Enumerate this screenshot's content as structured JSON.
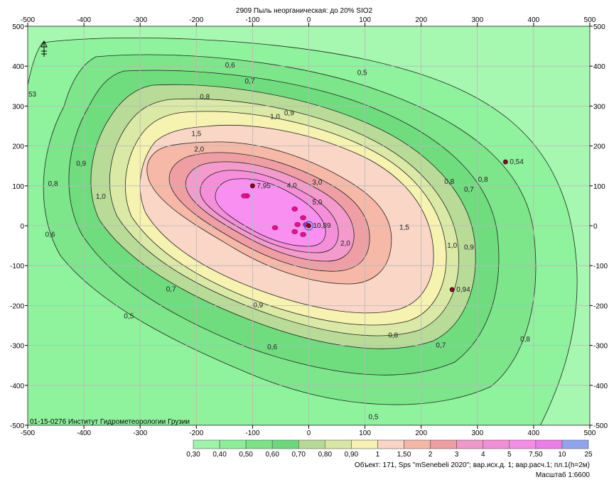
{
  "chart_data": {
    "type": "heatmap",
    "title": "2909 Пыль неорганическая: до 20% SIO2",
    "xlim": [
      -500,
      500
    ],
    "ylim": [
      -500,
      500
    ],
    "x_ticks": [
      "-500",
      "-400",
      "-300",
      "-200",
      "-100",
      "0",
      "100",
      "200",
      "300",
      "400",
      "500"
    ],
    "y_ticks": [
      "500",
      "400",
      "300",
      "200",
      "100",
      "0",
      "-100",
      "-200",
      "-300",
      "-400",
      "-500"
    ],
    "grid": true,
    "legend_placement": "bottom-right",
    "legend": {
      "levels": [
        "0,30",
        "0,40",
        "0,50",
        "0,60",
        "0,70",
        "0,80",
        "0,90",
        "1",
        "1,50",
        "2",
        "3",
        "4",
        "5",
        "7,50",
        "10",
        "25"
      ],
      "colors": [
        "#9cf5a8",
        "#8af096",
        "#7ae384",
        "#6ad97a",
        "#b6d996",
        "#d7e8a4",
        "#f5f2b0",
        "#fad5c4",
        "#f6b6a6",
        "#ef9ca2",
        "#f198c8",
        "#f48cd6",
        "#f68ce8",
        "#ee7ce8",
        "#8fa4f0"
      ]
    },
    "contour_labels": [
      {
        "text": "0,5",
        "x": 95,
        "y": 378
      },
      {
        "text": "0,6",
        "x": -140,
        "y": 397
      },
      {
        "text": "0,7",
        "x": -105,
        "y": 357
      },
      {
        "text": "0,8",
        "x": -185,
        "y": 318
      },
      {
        "text": "0,9",
        "x": -35,
        "y": 277
      },
      {
        "text": "1,0",
        "x": -60,
        "y": 268
      },
      {
        "text": "1,5",
        "x": -200,
        "y": 225
      },
      {
        "text": "2,0",
        "x": -195,
        "y": 186
      },
      {
        "text": "3,0",
        "x": 15,
        "y": 103
      },
      {
        "text": "4,0",
        "x": -30,
        "y": 95
      },
      {
        "text": "5,0",
        "x": 15,
        "y": 53
      },
      {
        "text": "0,9",
        "x": -405,
        "y": 150
      },
      {
        "text": "0,8",
        "x": -455,
        "y": 100
      },
      {
        "text": "1,0",
        "x": -370,
        "y": 68
      },
      {
        "text": "0,6",
        "x": -460,
        "y": -28
      },
      {
        "text": "0,7",
        "x": -245,
        "y": -165
      },
      {
        "text": "0,5",
        "x": -320,
        "y": -232
      },
      {
        "text": "0,9",
        "x": -90,
        "y": -205
      },
      {
        "text": "0,6",
        "x": -65,
        "y": -310
      },
      {
        "text": "0,8",
        "x": 150,
        "y": -280
      },
      {
        "text": "0,7",
        "x": 235,
        "y": -305
      },
      {
        "text": "0,8",
        "x": 385,
        "y": -290
      },
      {
        "text": "2,0",
        "x": 65,
        "y": -50
      },
      {
        "text": "1,5",
        "x": 170,
        "y": -10
      },
      {
        "text": "1,0",
        "x": 255,
        "y": -55
      },
      {
        "text": "0,9",
        "x": 285,
        "y": -60
      },
      {
        "text": "0,8",
        "x": 250,
        "y": 105
      },
      {
        "text": "0,7",
        "x": 285,
        "y": 85
      },
      {
        "text": "0,8",
        "x": 310,
        "y": 110
      },
      {
        "text": "0,5",
        "x": 115,
        "y": -485
      }
    ],
    "point_values": [
      {
        "text": "7,95",
        "x": -100,
        "y": 100
      },
      {
        "text": "10,89",
        "x": 0,
        "y": 0
      },
      {
        "text": "0,54",
        "x": 350,
        "y": 160
      },
      {
        "text": "0,94",
        "x": 255,
        "y": -160
      }
    ],
    "sources": [
      {
        "x": -110,
        "y": 75
      },
      {
        "x": -115,
        "y": 75
      },
      {
        "x": -25,
        "y": 42
      },
      {
        "x": -10,
        "y": 20
      },
      {
        "x": -20,
        "y": 3
      },
      {
        "x": -5,
        "y": 3
      },
      {
        "x": -25,
        "y": -15
      },
      {
        "x": -10,
        "y": -22
      },
      {
        "x": -60,
        "y": -5
      }
    ],
    "side_marker": "53"
  },
  "footer": {
    "institute": "01-15-0276 Институт Гидрометеорологии Грузии",
    "object": "Объект: 171, Sps \"mSenebeli 2020\"; вар.исх.д. 1; вар.расч.1; пл.1(h=2м)",
    "scale": "Масштаб 1:6600"
  }
}
